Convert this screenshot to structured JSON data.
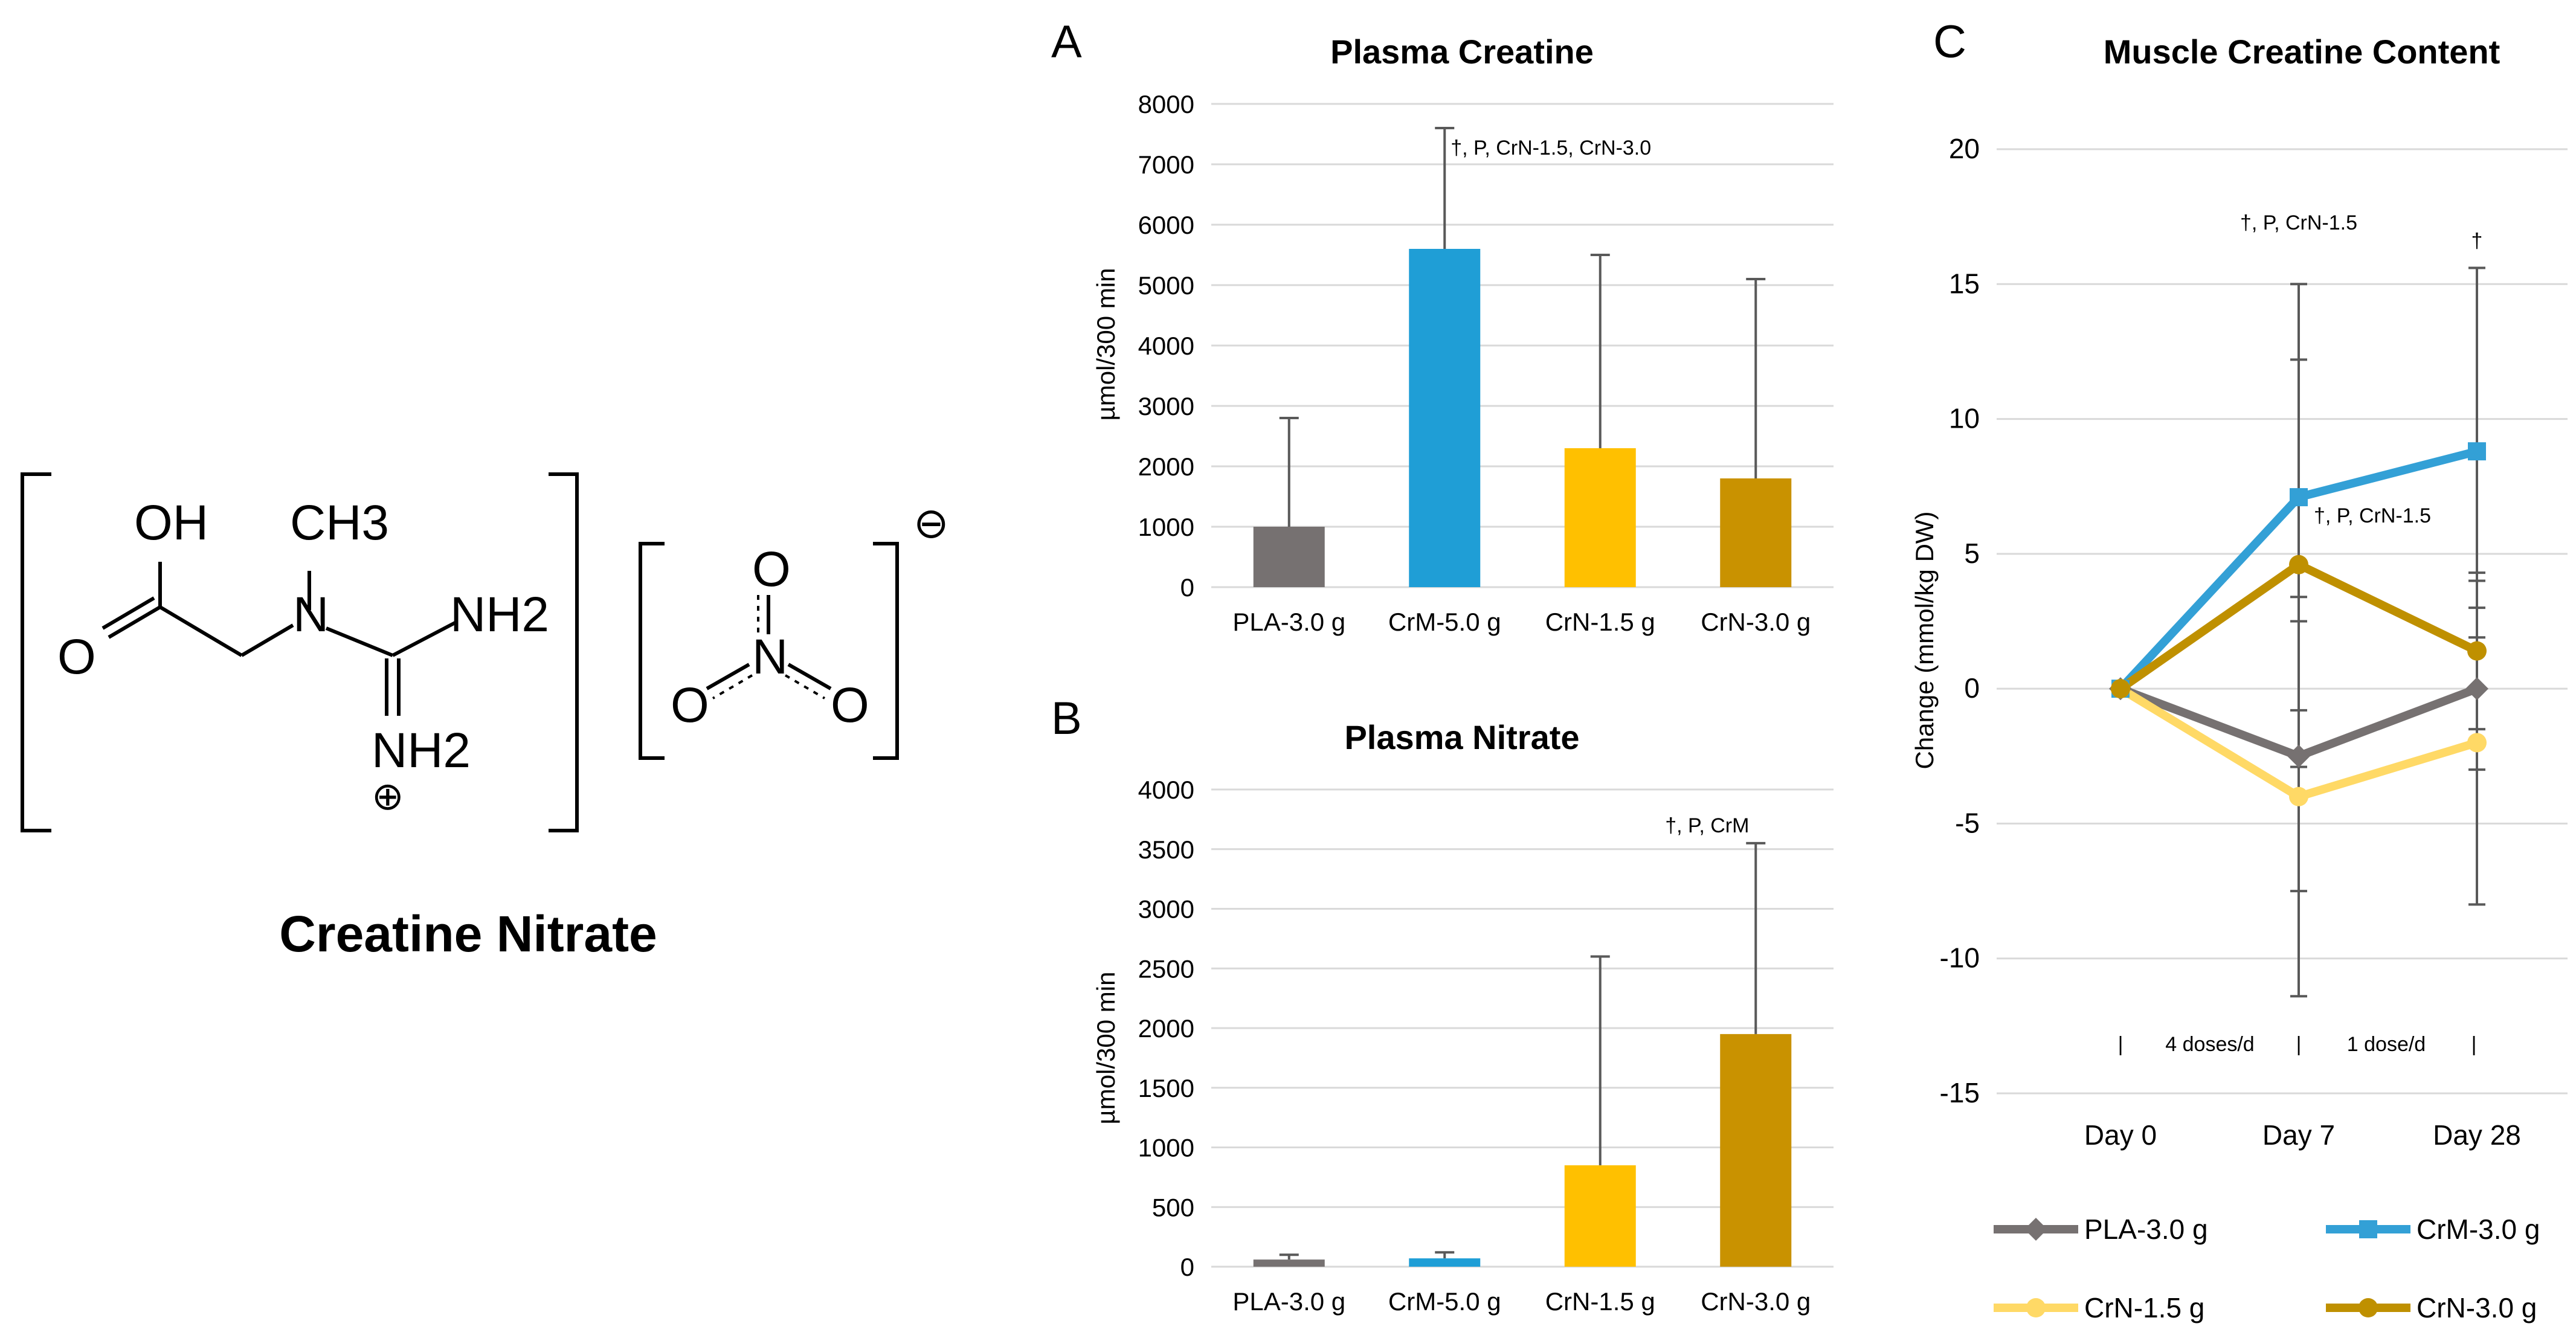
{
  "molecule": {
    "name": "Creatine Nitrate",
    "atoms": {
      "oh": "OH",
      "ch3": "CH3",
      "o_carbonyl": "O",
      "n": "N",
      "nh2_top": "NH2",
      "nh2_bottom": "NH2",
      "plus": "⊕",
      "nitrate_o_top": "O",
      "nitrate_n": "N",
      "nitrate_o_left": "O",
      "nitrate_o_right": "O",
      "minus": "⊖"
    }
  },
  "colors": {
    "pla": "#767171",
    "crm": "#1F9ED6",
    "crn15": "#FFC000",
    "crn30": "#C99200",
    "pla_line": "#767171",
    "crm_line": "#33A0D6",
    "crn15_line": "#FFD966",
    "crn30_line": "#BF9000",
    "grid": "#D9D9D9",
    "error": "#595959"
  },
  "chart_data": [
    {
      "panel": "A",
      "type": "bar",
      "title": "Plasma Creatine",
      "xlabel": "",
      "ylabel": "µmol/300 min",
      "ylim": [
        0,
        8000
      ],
      "yticks": [
        0,
        1000,
        2000,
        3000,
        4000,
        5000,
        6000,
        7000,
        8000
      ],
      "grid": true,
      "categories": [
        "PLA-3.0 g",
        "CrM-5.0 g",
        "CrN-1.5 g",
        "CrN-3.0 g"
      ],
      "values": [
        1000,
        5600,
        2300,
        1800
      ],
      "errors_upper": [
        2800,
        7600,
        5500,
        5100
      ],
      "annotations": [
        {
          "category": "CrM-5.0 g",
          "text": "†, P, CrN-1.5, CrN-3.0"
        }
      ]
    },
    {
      "panel": "B",
      "type": "bar",
      "title": "Plasma Nitrate",
      "xlabel": "",
      "ylabel": "µmol/300 min",
      "ylim": [
        0,
        4000
      ],
      "yticks": [
        0,
        500,
        1000,
        1500,
        2000,
        2500,
        3000,
        3500,
        4000
      ],
      "grid": true,
      "categories": [
        "PLA-3.0 g",
        "CrM-5.0 g",
        "CrN-1.5 g",
        "CrN-3.0 g"
      ],
      "values": [
        60,
        70,
        850,
        1950
      ],
      "errors_upper": [
        100,
        120,
        2600,
        3550
      ],
      "annotations": [
        {
          "category": "CrN-3.0 g",
          "text": "†, P, CrM"
        }
      ]
    },
    {
      "panel": "C",
      "type": "line",
      "title": "Muscle Creatine Content",
      "xlabel": "",
      "ylabel": "Change (mmol/kg DW)",
      "ylim": [
        -15,
        20
      ],
      "yticks": [
        -15,
        -10,
        -5,
        0,
        5,
        10,
        15,
        20
      ],
      "grid": true,
      "categories": [
        "Day 0",
        "Day 7",
        "Day 28"
      ],
      "series": [
        {
          "name": "PLA-3.0 g",
          "marker": "diamond",
          "values": [
            0,
            -2.5,
            0
          ],
          "err_lo": [
            0,
            -7.5,
            -3
          ],
          "err_hi": [
            0,
            2.5,
            3
          ]
        },
        {
          "name": "CrM-3.0 g",
          "marker": "square",
          "values": [
            0,
            7.1,
            8.8
          ],
          "err_lo": [
            0,
            -0.8,
            1.9
          ],
          "err_hi": [
            0,
            15,
            15.6
          ]
        },
        {
          "name": "CrN-1.5 g",
          "marker": "circle",
          "values": [
            0,
            -4,
            -2
          ],
          "err_lo": [
            0,
            -11.4,
            -8
          ],
          "err_hi": [
            0,
            3.4,
            4
          ]
        },
        {
          "name": "CrN-3.0 g",
          "marker": "circle",
          "values": [
            0,
            4.6,
            1.4
          ],
          "err_lo": [
            0,
            -2.9,
            -1.5
          ],
          "err_hi": [
            0,
            12.2,
            4.3
          ]
        }
      ],
      "annotations": [
        {
          "text": "†, P, CrN-1.5",
          "near": "Day 7 upper"
        },
        {
          "text": "†",
          "near": "Day 28 upper"
        },
        {
          "text": "†, P, CrN-1.5",
          "near": "Day 7 CrM-3.0 g"
        }
      ],
      "phase_labels": {
        "first": "4 doses/d",
        "second": "1  dose/d",
        "separator": "|"
      },
      "legend": "bottom"
    }
  ]
}
